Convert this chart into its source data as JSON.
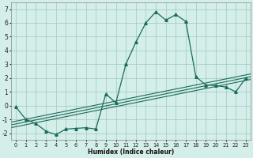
{
  "x": [
    0,
    1,
    2,
    3,
    4,
    5,
    6,
    7,
    8,
    9,
    10,
    11,
    12,
    13,
    14,
    15,
    16,
    17,
    18,
    19,
    20,
    21,
    22,
    23
  ],
  "main_line": [
    -0.1,
    -1.0,
    -1.3,
    -1.85,
    -2.1,
    -1.7,
    -1.65,
    -1.6,
    -1.7,
    0.85,
    0.2,
    3.0,
    4.6,
    6.0,
    6.8,
    6.2,
    6.6,
    6.1,
    2.1,
    1.5,
    1.45,
    1.35,
    1.0,
    2.0
  ],
  "trend1_x": [
    -0.5,
    23.5
  ],
  "trend1_y": [
    -1.6,
    1.9
  ],
  "trend2_x": [
    -0.5,
    23.5
  ],
  "trend2_y": [
    -1.4,
    2.1
  ],
  "trend3_x": [
    -0.5,
    23.5
  ],
  "trend3_y": [
    -1.2,
    2.3
  ],
  "line_color": "#1a6b5a",
  "bg_color": "#d4eeea",
  "grid_color": "#a0c8c0",
  "xlabel": "Humidex (Indice chaleur)",
  "ylim": [
    -2.5,
    7.5
  ],
  "xlim": [
    -0.5,
    23.5
  ],
  "yticks": [
    -2,
    -1,
    0,
    1,
    2,
    3,
    4,
    5,
    6,
    7
  ],
  "xticks": [
    0,
    1,
    2,
    3,
    4,
    5,
    6,
    7,
    8,
    9,
    10,
    11,
    12,
    13,
    14,
    15,
    16,
    17,
    18,
    19,
    20,
    21,
    22,
    23
  ],
  "xlabel_fontsize": 5.5,
  "ytick_fontsize": 5.5,
  "xtick_fontsize": 4.8
}
